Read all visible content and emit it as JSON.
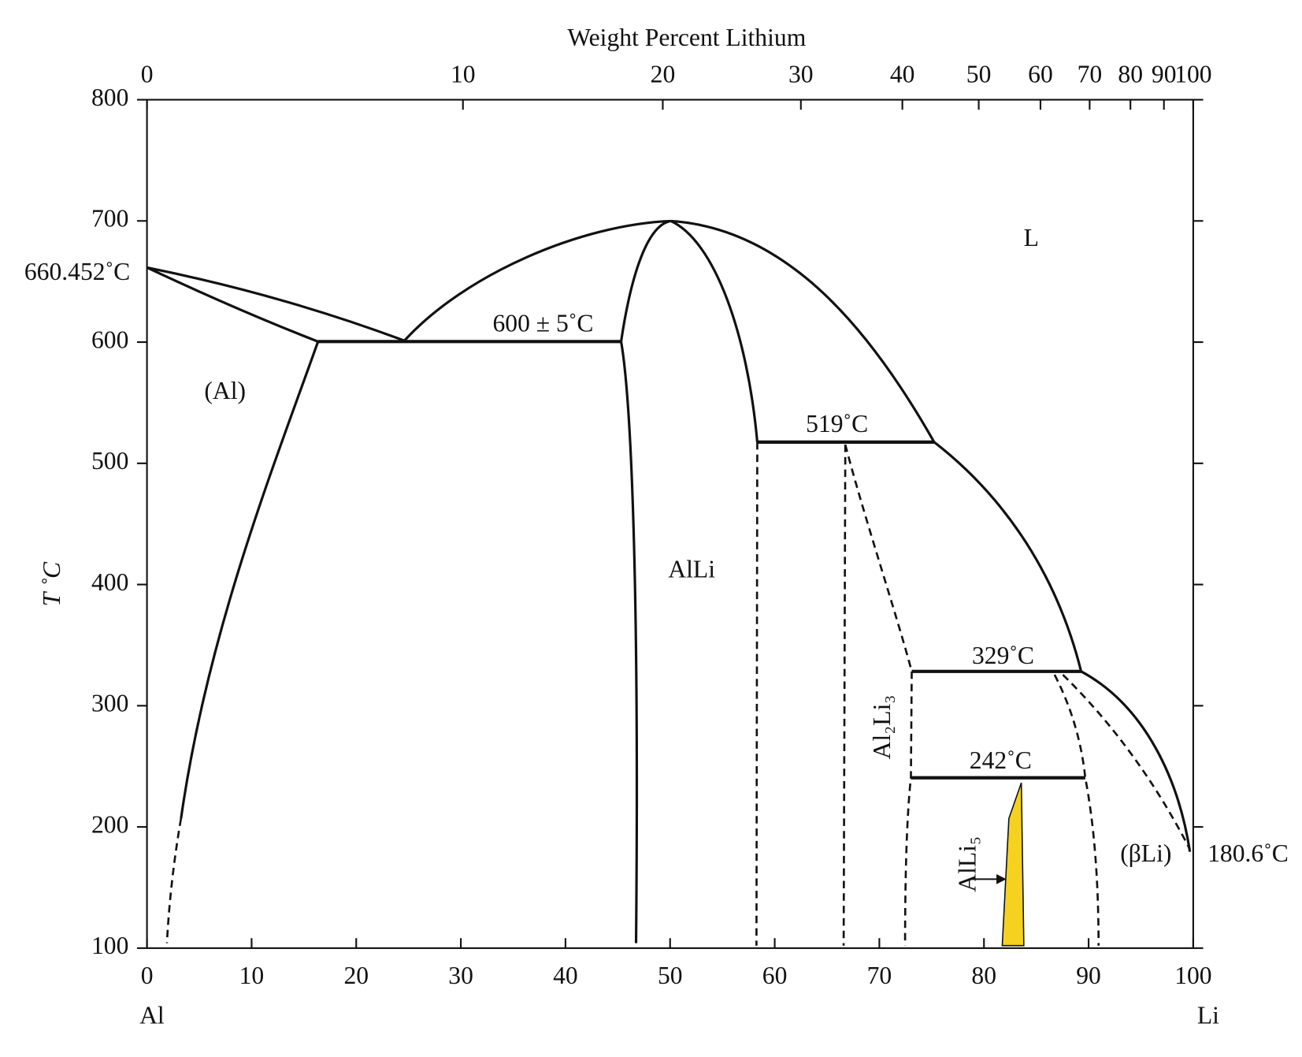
{
  "chart_data": {
    "type": "phase-diagram",
    "title": "Weight Percent Lithium",
    "y_label": "T ˚C",
    "x_left_label": "Al",
    "x_right_label": "Li",
    "xlim": [
      0,
      100
    ],
    "xticks": [
      0,
      10,
      20,
      30,
      40,
      50,
      60,
      70,
      80,
      90,
      100
    ],
    "ylim": [
      100,
      800
    ],
    "yticks": [
      100,
      200,
      300,
      400,
      500,
      600,
      700,
      800
    ],
    "x2ticks": [
      {
        "value": 0,
        "label": "0"
      },
      {
        "value": 30.2,
        "label": "10"
      },
      {
        "value": 49.3,
        "label": "20"
      },
      {
        "value": 62.5,
        "label": "30"
      },
      {
        "value": 72.2,
        "label": "40"
      },
      {
        "value": 79.5,
        "label": "50"
      },
      {
        "value": 85.4,
        "label": "60"
      },
      {
        "value": 90.1,
        "label": "70"
      },
      {
        "value": 94.0,
        "label": "80"
      },
      {
        "value": 97.2,
        "label": "90"
      },
      {
        "value": 100,
        "label": "100"
      }
    ],
    "grid": false,
    "annotations": [
      "660.452˚C",
      "600 ± 5˚C",
      "519˚C",
      "329˚C",
      "242˚C",
      "180.6˚C",
      "(Al)",
      "AlLi",
      "L",
      "Al₂Li₃",
      "AlLi₅",
      "(βLi)"
    ]
  }
}
